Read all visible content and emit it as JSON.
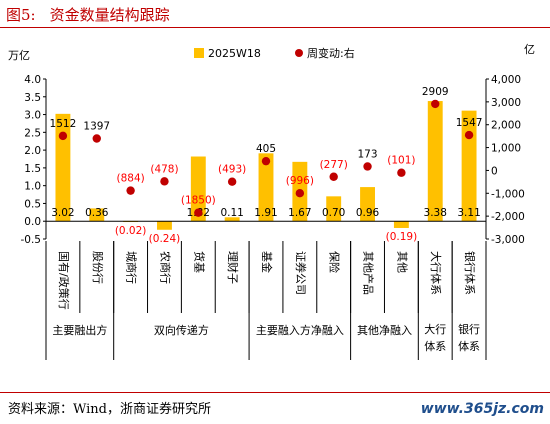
{
  "figure": {
    "number": "图5:",
    "title": "资金数量结构跟踪"
  },
  "source": "资料来源：Wind，浙商证券研究所",
  "watermark": "www.365jz.com",
  "colors": {
    "bar": "#ffc000",
    "dot": "#c00000",
    "negative_label": "#ff0000",
    "axis": "#000000",
    "title": "#c00000"
  },
  "chart_data": {
    "type": "bar",
    "categories": [
      "国有/政策行",
      "股份行",
      "城商行",
      "农商行",
      "货基",
      "理财子",
      "基金",
      "证券公司",
      "保险",
      "其他产品",
      "其他",
      "大行体系",
      "银行体系"
    ],
    "bar_labels": [
      "3.02",
      "0.36",
      "(0.02)",
      "(0.24)",
      "1.82",
      "0.11",
      "1.91",
      "1.67",
      "0.70",
      "0.96",
      "(0.19)",
      "3.38",
      "3.11"
    ],
    "dot_labels": [
      "1512",
      "1397",
      "(884)",
      "(478)",
      "(1850)",
      "(493)",
      "405",
      "(996)",
      "(277)",
      "173",
      "(101)",
      "2909",
      "1547"
    ],
    "series": [
      {
        "name": "2025W18",
        "axis": "left",
        "values": [
          3.02,
          0.36,
          -0.02,
          -0.24,
          1.82,
          0.11,
          1.91,
          1.67,
          0.7,
          0.96,
          -0.19,
          3.38,
          3.11
        ]
      },
      {
        "name": "周变动:右",
        "axis": "right",
        "values": [
          1512,
          1397,
          -884,
          -478,
          -1850,
          -493,
          405,
          -996,
          -277,
          173,
          -101,
          2909,
          1547
        ]
      }
    ],
    "left_axis": {
      "unit": "万亿",
      "ylim": [
        -0.5,
        4.0
      ],
      "ticks": [
        "4.0",
        "3.5",
        "3.0",
        "2.5",
        "2.0",
        "1.5",
        "1.0",
        "0.5",
        "0.0",
        "-0.5"
      ]
    },
    "right_axis": {
      "unit": "亿",
      "ylim": [
        -3000,
        4000
      ],
      "ticks": [
        "4,000",
        "3,000",
        "2,000",
        "1,000",
        "0",
        "-1,000",
        "-2,000",
        "-3,000"
      ]
    },
    "groups": [
      {
        "label": "主要融出方",
        "start": 0,
        "end": 1
      },
      {
        "label": "双向传递方",
        "start": 2,
        "end": 5
      },
      {
        "label": "主要融入方净融入",
        "start": 6,
        "end": 8
      },
      {
        "label": "其他净融入",
        "start": 9,
        "end": 10
      },
      {
        "label": "大行体系",
        "start": 11,
        "end": 11
      },
      {
        "label": "银行体系",
        "start": 12,
        "end": 12
      }
    ],
    "grid": false,
    "legend_position": "top"
  }
}
